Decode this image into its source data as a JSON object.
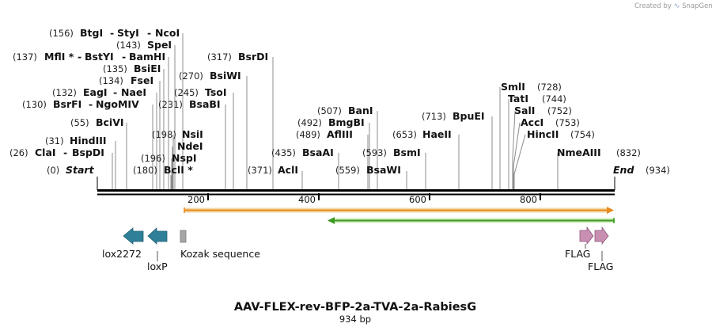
{
  "watermark": {
    "created_by": "Created by",
    "brand": "SnapGene"
  },
  "plasmid": {
    "name": "AAV-FLEX-rev-BFP-2a-TVA-2a-RabiesG",
    "size_label": "934 bp",
    "length": 934
  },
  "ends": {
    "start": {
      "position": "(0)",
      "label": "Start"
    },
    "end": {
      "position": "(934)",
      "label": "End"
    }
  },
  "ruler": {
    "ticks": [
      "200",
      "400",
      "600",
      "800"
    ]
  },
  "sites": [
    {
      "position": "(156)",
      "names": [
        "BtgI",
        "StyI",
        "NcoI"
      ]
    },
    {
      "position": "(143)",
      "names": [
        "SpeI"
      ]
    },
    {
      "position": "(137)",
      "names": [
        "MflI *",
        "BstYI",
        "BamHI"
      ]
    },
    {
      "position": "(135)",
      "names": [
        "BsiEI"
      ]
    },
    {
      "position": "(134)",
      "names": [
        "FseI"
      ]
    },
    {
      "position": "(132)",
      "names": [
        "EagI",
        "NaeI"
      ]
    },
    {
      "position": "(130)",
      "names": [
        "BsrFI",
        "NgoMIV"
      ]
    },
    {
      "position": "(55)",
      "names": [
        "BciVI"
      ]
    },
    {
      "position": "(31)",
      "names": [
        "HindIII"
      ]
    },
    {
      "position": "(26)",
      "names": [
        "ClaI",
        "BspDI"
      ]
    },
    {
      "position": "(317)",
      "names": [
        "BsrDI"
      ]
    },
    {
      "position": "(270)",
      "names": [
        "BsiWI"
      ]
    },
    {
      "position": "(245)",
      "names": [
        "TsoI"
      ]
    },
    {
      "position": "(231)",
      "names": [
        "BsaBI"
      ]
    },
    {
      "position": "(198)",
      "names": [
        "NsiI"
      ]
    },
    {
      "position": "",
      "names": [
        "NdeI"
      ]
    },
    {
      "position": "(196)",
      "names": [
        "NspI"
      ]
    },
    {
      "position": "(180)",
      "names": [
        "BclI *"
      ]
    },
    {
      "position": "(507)",
      "names": [
        "BanI"
      ]
    },
    {
      "position": "(492)",
      "names": [
        "BmgBI"
      ]
    },
    {
      "position": "(489)",
      "names": [
        "AflIII"
      ]
    },
    {
      "position": "(435)",
      "names": [
        "BsaAI"
      ]
    },
    {
      "position": "(371)",
      "names": [
        "AclI"
      ]
    },
    {
      "position": "(593)",
      "names": [
        "BsmI"
      ]
    },
    {
      "position": "(559)",
      "names": [
        "BsaWI"
      ]
    },
    {
      "position": "(653)",
      "names": [
        "HaeII"
      ]
    },
    {
      "position": "(713)",
      "names": [
        "BpuEI"
      ]
    },
    {
      "position": "(728)",
      "names": [
        "SmlI"
      ]
    },
    {
      "position": "(744)",
      "names": [
        "TatI"
      ]
    },
    {
      "position": "(752)",
      "names": [
        "SalI"
      ]
    },
    {
      "position": "(753)",
      "names": [
        "AccI"
      ]
    },
    {
      "position": "(754)",
      "names": [
        "HincII"
      ]
    },
    {
      "position": "(832)",
      "names": [
        "NmeAIII"
      ]
    }
  ],
  "features": [
    {
      "name": "lox2272",
      "color": "#2e7f97"
    },
    {
      "name": "loxP",
      "color": "#2e7f97"
    },
    {
      "name": "Kozak sequence",
      "color": "#a6a6a6"
    },
    {
      "name": "FLAG",
      "color": "#c98fb2"
    },
    {
      "name": "FLAG",
      "color": "#c98fb2"
    }
  ],
  "orfs": [
    {
      "label": "forward ORF",
      "start": 157,
      "end": 934,
      "color": "#e68a1f"
    },
    {
      "label": "reverse ORF",
      "start": 415,
      "end": 934,
      "color": "#3c9b22"
    }
  ]
}
